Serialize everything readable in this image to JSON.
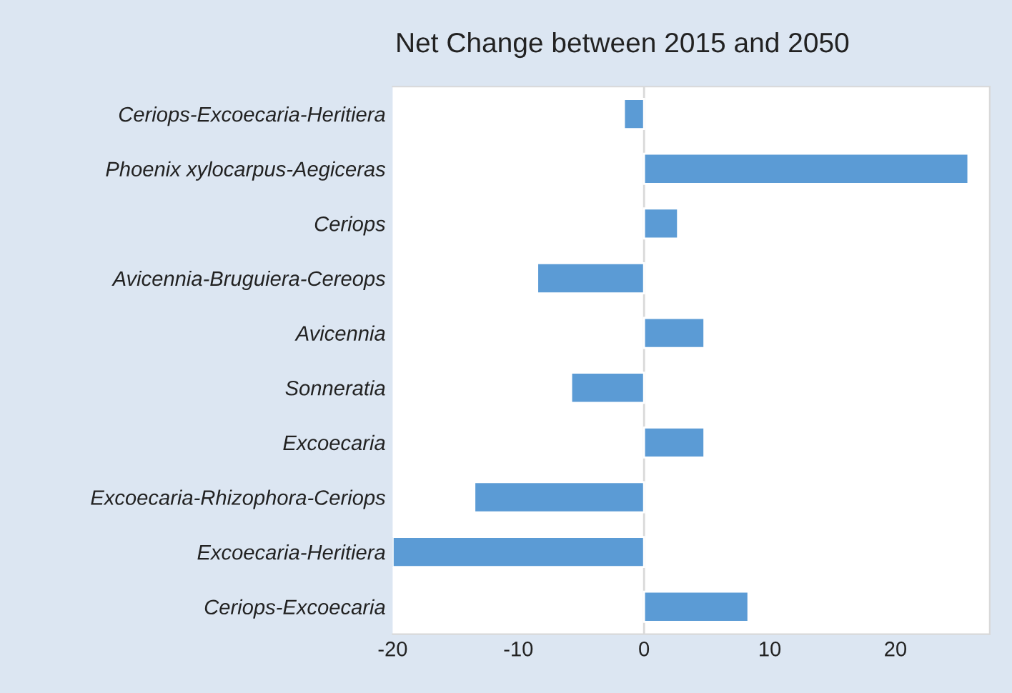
{
  "chart_data": {
    "type": "bar",
    "orientation": "horizontal",
    "title": "Net Change between 2015 and 2050",
    "categories": [
      "Ceriops-Excoecaria-Heritiera",
      "Phoenix xylocarpus-Aegiceras",
      "Ceriops",
      "Avicennia-Bruguiera-Cereops",
      "Avicennia",
      "Sonneratia",
      "Excoecaria",
      "Excoecaria-Rhizophora-Ceriops",
      "Excoecaria-Heritiera",
      "Ceriops-Excoecaria"
    ],
    "values": [
      -1.6,
      25.8,
      2.7,
      -8.5,
      4.8,
      -5.8,
      4.8,
      -13.5,
      -20,
      8.3
    ],
    "color": "#5b9bd5",
    "xlim": [
      -20,
      27.5
    ],
    "xticks": [
      -20,
      -10,
      0,
      10,
      20
    ],
    "grid": false,
    "legend": false,
    "ref_lines": [
      {
        "axis": "x",
        "value": 0,
        "color": "#d9d9d9"
      }
    ]
  }
}
